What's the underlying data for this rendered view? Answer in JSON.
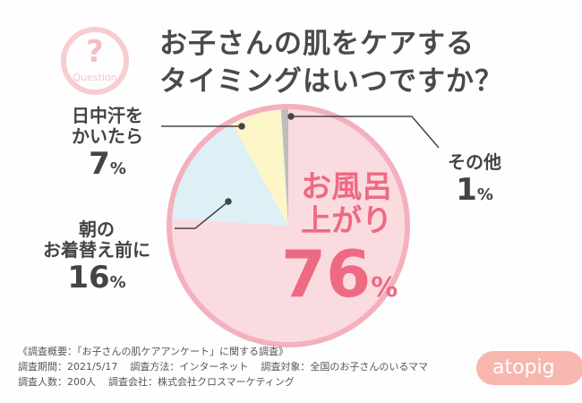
{
  "title_lines": [
    "お子さんの肌をケアする",
    "タイミングはいつですか？"
  ],
  "question_icon": {
    "mark": "?",
    "word": "Question"
  },
  "chart_data": {
    "type": "pie",
    "title": "お子さんの肌をケアするタイミングはいつですか？",
    "start": "top",
    "direction": "clockwise",
    "slices": [
      {
        "label": "お風呂上がり",
        "value": 76,
        "color": "#fadbe0"
      },
      {
        "label": "朝のお着替え前に",
        "value": 16,
        "color": "#dcf0f5"
      },
      {
        "label": "日中汗をかいたら",
        "value": 7,
        "color": "#fbf5c8"
      },
      {
        "label": "その他",
        "value": 1,
        "color": "#bdbdbd"
      }
    ],
    "ring_color": "#f4b0bd"
  },
  "labels": {
    "bath": {
      "l1": "お風呂",
      "l2": "上がり",
      "num": "76",
      "unit": "%"
    },
    "morning": {
      "l1": "朝の",
      "l2": "お着替え前に",
      "num": "16",
      "unit": "%"
    },
    "sweat": {
      "l1": "日中汗を",
      "l2": "かいたら",
      "num": "7",
      "unit": "%"
    },
    "other": {
      "l1": "その他",
      "num": "1",
      "unit": "%"
    }
  },
  "survey": {
    "heading": "《調査概要：「お子さんの肌ケアアンケート」に関する調査》",
    "period": "調査期間：2021/5/17",
    "method": "調査方法：インターネット",
    "target": "調査対象：全国のお子さんのいるママ",
    "count": "調査人数：200人",
    "company": "調査会社：株式会社クロスマーケティング"
  },
  "brand": "atopig"
}
